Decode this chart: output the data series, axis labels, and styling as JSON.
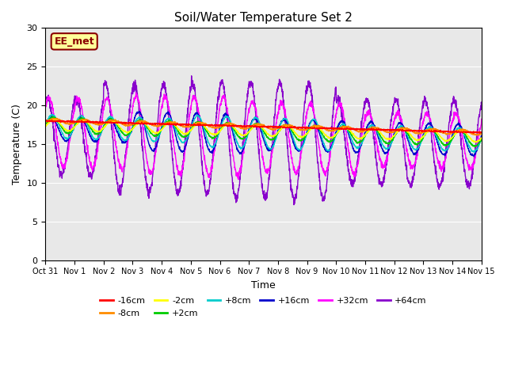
{
  "title": "Soil/Water Temperature Set 2",
  "xlabel": "Time",
  "ylabel": "Temperature (C)",
  "ylim": [
    0,
    30
  ],
  "xlim": [
    0,
    15
  ],
  "yticks": [
    0,
    5,
    10,
    15,
    20,
    25,
    30
  ],
  "xtick_labels": [
    "Oct 31",
    "Nov 1",
    "Nov 2",
    "Nov 3",
    "Nov 4",
    "Nov 5",
    "Nov 6",
    "Nov 7",
    "Nov 8",
    "Nov 9",
    "Nov 10",
    "Nov 11",
    "Nov 12",
    "Nov 13",
    "Nov 14",
    "Nov 15"
  ],
  "annotation_text": "EE_met",
  "annotation_color": "#8B0000",
  "annotation_bg": "#FFFF99",
  "bg_color": "#E8E8E8",
  "series": [
    {
      "label": "-16cm",
      "color": "#FF0000"
    },
    {
      "label": "-8cm",
      "color": "#FF8C00"
    },
    {
      "label": "-2cm",
      "color": "#FFFF00"
    },
    {
      "label": "+2cm",
      "color": "#00CC00"
    },
    {
      "label": "+8cm",
      "color": "#00CCCC"
    },
    {
      "label": "+16cm",
      "color": "#0000CC"
    },
    {
      "label": "+32cm",
      "color": "#FF00FF"
    },
    {
      "label": "+64cm",
      "color": "#8800CC"
    }
  ]
}
